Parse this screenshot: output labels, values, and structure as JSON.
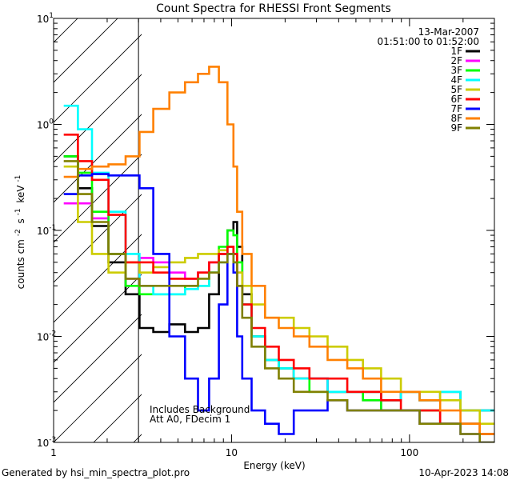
{
  "chart_data": {
    "type": "line",
    "title": "Count Spectra for RHESSI Front Segments",
    "xlabel": "Energy (keV)",
    "ylabel_main": "counts cm",
    "ylabel_exp1": "-2",
    "ylabel_s": "s",
    "ylabel_exp2": "-1",
    "ylabel_kev": "keV",
    "ylabel_exp3": "-1",
    "xscale": "log",
    "yscale": "log",
    "xlim": [
      1,
      300
    ],
    "ylim": [
      0.001,
      10
    ],
    "x_ticks": [
      {
        "value": 1,
        "label": "1"
      },
      {
        "value": 10,
        "label": "10"
      },
      {
        "value": 100,
        "label": "100"
      }
    ],
    "y_ticks": [
      {
        "value": 10,
        "base": "10",
        "exp": "1"
      },
      {
        "value": 1,
        "base": "10",
        "exp": "0"
      },
      {
        "value": 0.1,
        "base": "10",
        "exp": "-1"
      },
      {
        "value": 0.01,
        "base": "10",
        "exp": "-2"
      },
      {
        "value": 0.001,
        "base": "10",
        "exp": "-3"
      }
    ],
    "date": "13-Mar-2007",
    "time_range": "01:51:00 to 01:52:00",
    "shaded_region_keV": [
      1,
      3
    ],
    "annotation_line1": "Includes Background",
    "annotation_line2": "Att A0, FDecim 1",
    "footer_left": "Generated by hsi_min_spectra_plot.pro",
    "footer_right": "10-Apr-2023 14:08",
    "series": [
      {
        "name": "1F",
        "color": "#000000",
        "x": [
          1.25,
          1.5,
          1.8,
          2.3,
          2.8,
          3.3,
          4.0,
          5.0,
          6.0,
          7.0,
          8.0,
          9.0,
          10.0,
          10.5,
          11.0,
          12.0,
          14.0,
          17.0,
          20.0,
          25.0,
          30.0,
          40.0,
          50.0,
          60.0,
          80.0,
          100.0,
          130.0,
          170.0,
          220.0,
          280.0
        ],
        "y": [
          0.5,
          0.25,
          0.11,
          0.05,
          0.025,
          0.012,
          0.011,
          0.013,
          0.011,
          0.012,
          0.025,
          0.06,
          0.1,
          0.12,
          0.07,
          0.025,
          0.01,
          0.006,
          0.005,
          0.004,
          0.004,
          0.003,
          0.003,
          0.003,
          0.0025,
          0.003,
          0.0025,
          0.003,
          0.002,
          0.002
        ]
      },
      {
        "name": "2F",
        "color": "#ff00ff",
        "x": [
          1.25,
          1.5,
          1.8,
          2.3,
          2.8,
          3.3,
          4.0,
          5.0,
          6.0,
          7.0,
          8.0,
          9.0,
          10.0,
          10.5,
          11.0,
          12.0,
          14.0,
          17.0,
          20.0,
          25.0,
          30.0,
          40.0,
          50.0,
          60.0,
          80.0,
          100.0,
          130.0,
          170.0,
          220.0,
          280.0
        ],
        "y": [
          0.18,
          0.18,
          0.13,
          0.06,
          0.035,
          0.055,
          0.05,
          0.04,
          0.035,
          0.04,
          0.05,
          0.06,
          0.07,
          0.06,
          0.04,
          0.02,
          0.01,
          0.006,
          0.005,
          0.004,
          0.004,
          0.003,
          0.003,
          0.0025,
          0.002,
          0.002,
          0.002,
          0.0015,
          0.0015,
          0.0012
        ]
      },
      {
        "name": "3F",
        "color": "#00ff00",
        "x": [
          1.25,
          1.5,
          1.8,
          2.3,
          2.8,
          3.3,
          4.0,
          5.0,
          6.0,
          7.0,
          8.0,
          9.0,
          10.0,
          10.5,
          11.0,
          12.0,
          14.0,
          17.0,
          20.0,
          25.0,
          30.0,
          40.0,
          50.0,
          60.0,
          80.0,
          100.0,
          130.0,
          170.0,
          220.0,
          280.0
        ],
        "y": [
          0.5,
          0.35,
          0.15,
          0.06,
          0.03,
          0.025,
          0.025,
          0.025,
          0.03,
          0.03,
          0.04,
          0.07,
          0.1,
          0.09,
          0.05,
          0.02,
          0.01,
          0.006,
          0.005,
          0.004,
          0.003,
          0.003,
          0.003,
          0.0025,
          0.002,
          0.002,
          0.002,
          0.0015,
          0.0015,
          0.0012
        ]
      },
      {
        "name": "4F",
        "color": "#00ffff",
        "x": [
          1.25,
          1.5,
          1.8,
          2.3,
          2.8,
          3.3,
          4.0,
          5.0,
          6.0,
          7.0,
          8.0,
          9.0,
          10.0,
          10.5,
          11.0,
          12.0,
          14.0,
          17.0,
          20.0,
          25.0,
          30.0,
          40.0,
          50.0,
          60.0,
          80.0,
          100.0,
          130.0,
          170.0,
          220.0,
          280.0
        ],
        "y": [
          1.5,
          0.9,
          0.35,
          0.15,
          0.06,
          0.03,
          0.025,
          0.025,
          0.028,
          0.03,
          0.04,
          0.05,
          0.06,
          0.05,
          0.03,
          0.02,
          0.01,
          0.006,
          0.005,
          0.004,
          0.004,
          0.003,
          0.003,
          0.003,
          0.0025,
          0.003,
          0.0025,
          0.003,
          0.002,
          0.002
        ]
      },
      {
        "name": "5F",
        "color": "#cccc00",
        "x": [
          1.25,
          1.5,
          1.8,
          2.3,
          2.8,
          3.3,
          4.0,
          5.0,
          6.0,
          7.0,
          8.0,
          9.0,
          10.0,
          10.5,
          11.0,
          12.0,
          14.0,
          17.0,
          20.0,
          25.0,
          30.0,
          40.0,
          50.0,
          60.0,
          80.0,
          100.0,
          130.0,
          170.0,
          220.0,
          280.0
        ],
        "y": [
          0.4,
          0.12,
          0.06,
          0.04,
          0.05,
          0.04,
          0.045,
          0.05,
          0.055,
          0.06,
          0.06,
          0.065,
          0.07,
          0.06,
          0.04,
          0.03,
          0.02,
          0.015,
          0.015,
          0.012,
          0.01,
          0.008,
          0.006,
          0.005,
          0.004,
          0.003,
          0.003,
          0.0025,
          0.002,
          0.0015
        ]
      },
      {
        "name": "6F",
        "color": "#ff0000",
        "x": [
          1.25,
          1.5,
          1.8,
          2.3,
          2.8,
          3.3,
          4.0,
          5.0,
          6.0,
          7.0,
          8.0,
          9.0,
          10.0,
          10.5,
          11.0,
          12.0,
          14.0,
          17.0,
          20.0,
          25.0,
          30.0,
          40.0,
          50.0,
          60.0,
          80.0,
          100.0,
          130.0,
          170.0,
          220.0,
          280.0
        ],
        "y": [
          0.8,
          0.45,
          0.3,
          0.14,
          0.05,
          0.05,
          0.04,
          0.035,
          0.035,
          0.04,
          0.05,
          0.06,
          0.07,
          0.06,
          0.03,
          0.02,
          0.012,
          0.008,
          0.006,
          0.005,
          0.004,
          0.004,
          0.003,
          0.003,
          0.0025,
          0.002,
          0.002,
          0.0015,
          0.0015,
          0.0012
        ]
      },
      {
        "name": "7F",
        "color": "#0000ff",
        "x": [
          1.25,
          1.5,
          1.8,
          2.3,
          2.8,
          3.3,
          4.0,
          5.0,
          6.0,
          7.0,
          8.0,
          9.0,
          10.0,
          10.5,
          11.0,
          12.0,
          14.0,
          17.0,
          20.0,
          25.0,
          30.0,
          40.0,
          50.0,
          60.0,
          80.0,
          100.0,
          130.0,
          170.0,
          220.0,
          280.0
        ],
        "y": [
          0.22,
          0.33,
          0.34,
          0.33,
          0.33,
          0.25,
          0.06,
          0.01,
          0.004,
          0.002,
          0.004,
          0.02,
          0.06,
          0.04,
          0.01,
          0.004,
          0.002,
          0.0015,
          0.0012,
          0.002,
          0.002,
          0.0025,
          0.002,
          0.002,
          0.002,
          0.002,
          0.0015,
          0.0015,
          0.0012,
          0.001
        ]
      },
      {
        "name": "8F",
        "color": "#ff8000",
        "x": [
          1.25,
          1.5,
          1.8,
          2.3,
          2.8,
          3.3,
          4.0,
          5.0,
          6.0,
          7.0,
          8.0,
          9.0,
          10.0,
          10.5,
          11.0,
          12.0,
          14.0,
          17.0,
          20.0,
          25.0,
          30.0,
          40.0,
          50.0,
          60.0,
          80.0,
          100.0,
          130.0,
          170.0,
          220.0,
          280.0
        ],
        "y": [
          0.32,
          0.38,
          0.4,
          0.42,
          0.5,
          0.85,
          1.4,
          2.0,
          2.5,
          3.0,
          3.5,
          2.5,
          1.0,
          0.4,
          0.15,
          0.06,
          0.03,
          0.015,
          0.012,
          0.01,
          0.008,
          0.006,
          0.005,
          0.004,
          0.003,
          0.003,
          0.0025,
          0.002,
          0.0015,
          0.0012
        ]
      },
      {
        "name": "9F",
        "color": "#808000",
        "x": [
          1.25,
          1.5,
          1.8,
          2.3,
          2.8,
          3.3,
          4.0,
          5.0,
          6.0,
          7.0,
          8.0,
          9.0,
          10.0,
          10.5,
          11.0,
          12.0,
          14.0,
          17.0,
          20.0,
          25.0,
          30.0,
          40.0,
          50.0,
          60.0,
          80.0,
          100.0,
          130.0,
          170.0,
          220.0,
          280.0
        ],
        "y": [
          0.45,
          0.22,
          0.12,
          0.06,
          0.035,
          0.03,
          0.03,
          0.03,
          0.03,
          0.035,
          0.04,
          0.05,
          0.06,
          0.05,
          0.03,
          0.015,
          0.008,
          0.005,
          0.004,
          0.003,
          0.003,
          0.0025,
          0.002,
          0.002,
          0.002,
          0.002,
          0.0015,
          0.0015,
          0.0012,
          0.001
        ]
      }
    ]
  }
}
